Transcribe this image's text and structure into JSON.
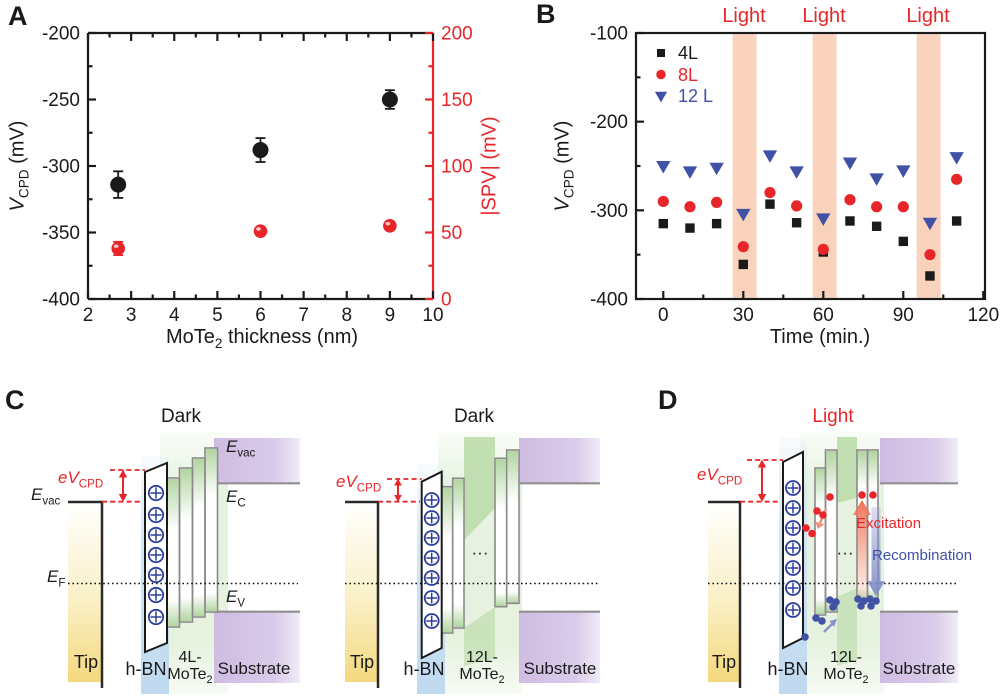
{
  "figure": {
    "background": "#ffffff",
    "accent_red": "#e8262a",
    "accent_blue": "#4152a6",
    "light_band_color": "#f8d2bb"
  },
  "panels": {
    "a": {
      "label": "A",
      "ylabel_left": {
        "main": "V",
        "sub": "CPD",
        "post": " (mV)"
      },
      "ylabel_right": "|SPV| (mV)",
      "xlabel": {
        "main": "MoTe",
        "sub": "2",
        "post": " thickness (nm)"
      }
    },
    "b": {
      "label": "B",
      "ylabel": {
        "main": "V",
        "sub": "CPD",
        "post": " (mV)"
      },
      "xlabel": "Time (min.)",
      "light_label": "Light",
      "legend": [
        {
          "label": "4L",
          "color": "#1a1a1a",
          "marker": "square"
        },
        {
          "label": "8L",
          "color": "#e8262a",
          "marker": "circle"
        },
        {
          "label": "12 L",
          "color": "#4152a6",
          "marker": "triangle-down"
        }
      ]
    },
    "c": {
      "label": "C",
      "title_left": "Dark",
      "title_right": "Dark",
      "evcpd": {
        "main": "eV",
        "sub": "CPD"
      },
      "evac": {
        "main": "E",
        "sub": "vac"
      },
      "ef": {
        "main": "E",
        "sub": "F"
      },
      "evac_sub": {
        "main": "E",
        "sub": "vac"
      },
      "ec": {
        "main": "E",
        "sub": "C"
      },
      "ev": {
        "main": "E",
        "sub": "V"
      },
      "tip": "Tip",
      "hbn": "h-BN",
      "mote2_4l": {
        "line1": "4L-",
        "main": "MoTe",
        "sub": "2"
      },
      "mote2_12l": {
        "line1": "12L-",
        "main": "MoTe",
        "sub": "2"
      },
      "substrate": "Substrate",
      "dots": "···"
    },
    "d": {
      "label": "D",
      "title": "Light",
      "evcpd": {
        "main": "eV",
        "sub": "CPD"
      },
      "tip": "Tip",
      "hbn": "h-BN",
      "mote2_12l": {
        "line1": "12L-",
        "main": "MoTe",
        "sub": "2"
      },
      "substrate": "Substrate",
      "dots": "···",
      "excitation": "Excitation",
      "recombination": "Recombination"
    }
  },
  "chart_data": [
    {
      "type": "scatter",
      "panel": "A",
      "xlabel": "MoTe2 thickness (nm)",
      "ylabel_left": "V_CPD (mV)",
      "ylabel_right": "|SPV| (mV)",
      "xlim": [
        2,
        10
      ],
      "ylim_left": [
        -400,
        -200
      ],
      "ylim_right": [
        0,
        200
      ],
      "xticks": [
        2,
        3,
        4,
        5,
        6,
        7,
        8,
        9,
        10
      ],
      "yticks_left": [
        -200,
        -250,
        -300,
        -350,
        -400
      ],
      "yticks_right": [
        200,
        150,
        100,
        50,
        0
      ],
      "grid": false,
      "series": [
        {
          "name": "VCPD",
          "axis": "left",
          "marker": "circle",
          "color": "#1a1a1a",
          "x": [
            2.7,
            6,
            9
          ],
          "y": [
            -314,
            -288,
            -250
          ],
          "yerr": [
            10,
            9,
            7
          ]
        },
        {
          "name": "|SPV|",
          "axis": "right",
          "marker": "circle",
          "color": "#e8262a",
          "x": [
            2.7,
            6,
            9
          ],
          "y": [
            38,
            51,
            55
          ],
          "yerr": [
            5,
            3,
            3
          ]
        }
      ]
    },
    {
      "type": "scatter",
      "panel": "B",
      "xlabel": "Time (min.)",
      "ylabel": "V_CPD (mV)",
      "xlim": [
        -10,
        122
      ],
      "ylim": [
        -400,
        -100
      ],
      "xticks": [
        0,
        30,
        60,
        90,
        120
      ],
      "yticks": [
        -100,
        -200,
        -300,
        -400
      ],
      "grid": false,
      "legend_position": "top-left",
      "x": [
        0,
        10,
        20,
        30,
        40,
        50,
        60,
        70,
        80,
        90,
        100,
        110
      ],
      "series": [
        {
          "name": "4L",
          "marker": "square",
          "color": "#1a1a1a",
          "values": [
            -315,
            -320,
            -315,
            -361,
            -293,
            -314,
            -347,
            -312,
            -318,
            -335,
            -374,
            -312
          ]
        },
        {
          "name": "8L",
          "marker": "circle",
          "color": "#e8262a",
          "values": [
            -290,
            -296,
            -291,
            -341,
            -280,
            -295,
            -344,
            -288,
            -296,
            -296,
            -350,
            -265
          ]
        },
        {
          "name": "12 L",
          "marker": "triangle-down",
          "color": "#4152a6",
          "values": [
            -250,
            -256,
            -252,
            -304,
            -238,
            -256,
            -309,
            -246,
            -264,
            -255,
            -314,
            -240
          ]
        }
      ],
      "light_intervals": [
        [
          26,
          35
        ],
        [
          56,
          65
        ],
        [
          95,
          104
        ]
      ],
      "light_band_color": "#f8d2bb"
    }
  ]
}
